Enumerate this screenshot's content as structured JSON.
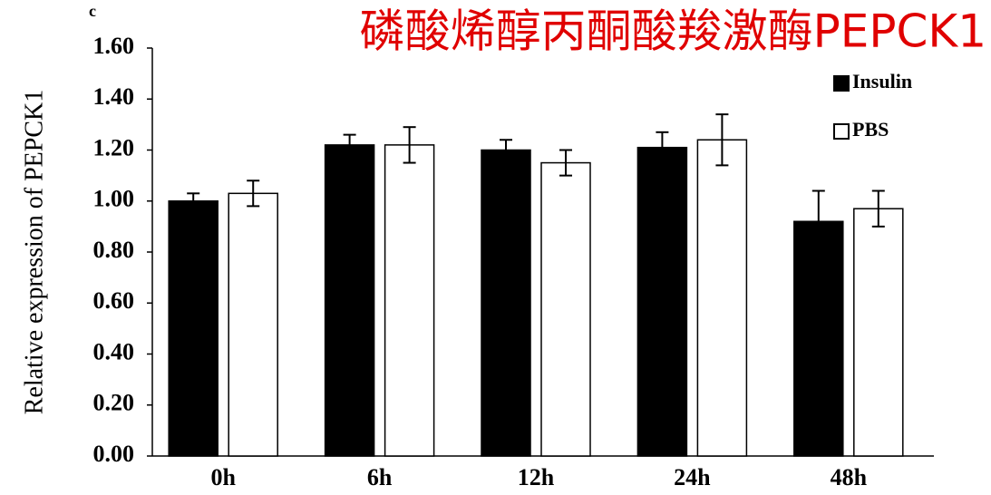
{
  "chart_data": {
    "type": "bar",
    "panel_label": "c",
    "title": "磷酸烯醇丙酮酸羧激酶PEPCK1",
    "y_label": "Relative expression of PEPCK1",
    "categories": [
      "0h",
      "6h",
      "12h",
      "24h",
      "48h"
    ],
    "series": [
      {
        "name": "Insulin",
        "color": "#000000",
        "values": [
          1.0,
          1.22,
          1.2,
          1.21,
          0.92
        ],
        "errors": [
          0.03,
          0.04,
          0.04,
          0.06,
          0.12
        ]
      },
      {
        "name": "PBS",
        "color": "#ffffff",
        "values": [
          1.03,
          1.22,
          1.15,
          1.24,
          0.97
        ],
        "errors": [
          0.05,
          0.07,
          0.05,
          0.1,
          0.07
        ]
      }
    ],
    "ylim": [
      0,
      1.6
    ],
    "yticks": [
      {
        "value": 0,
        "label": "0.00"
      },
      {
        "value": 0.2,
        "label": "0.20"
      },
      {
        "value": 0.4,
        "label": "0.40"
      },
      {
        "value": 0.6,
        "label": "0.60"
      },
      {
        "value": 0.8,
        "label": "0.80"
      },
      {
        "value": 1,
        "label": "1.00"
      },
      {
        "value": 1.2,
        "label": "1.20"
      },
      {
        "value": 1.4,
        "label": "1.40"
      },
      {
        "value": 1.6,
        "label": "1.60"
      }
    ],
    "legend_position": "upper right"
  }
}
